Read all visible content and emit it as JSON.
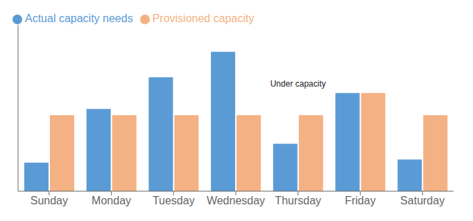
{
  "chart_data": {
    "type": "bar",
    "categories": [
      "Sunday",
      "Monday",
      "Tuesday",
      "Wednesday",
      "Thursday",
      "Friday",
      "Saturday"
    ],
    "series": [
      {
        "name": "Actual capacity needs",
        "color": "#5B9BD5",
        "values": [
          1.8,
          5.2,
          7.2,
          8.8,
          3.0,
          6.2,
          2.0
        ]
      },
      {
        "name": "Provisioned capacity",
        "color": "#F4B183",
        "values": [
          4.8,
          4.8,
          4.8,
          4.8,
          4.8,
          6.2,
          4.8
        ]
      }
    ],
    "ylim": [
      0,
      10.5
    ],
    "tick_labels": "x",
    "legend": "upper left",
    "annotation": "Under capacity"
  }
}
